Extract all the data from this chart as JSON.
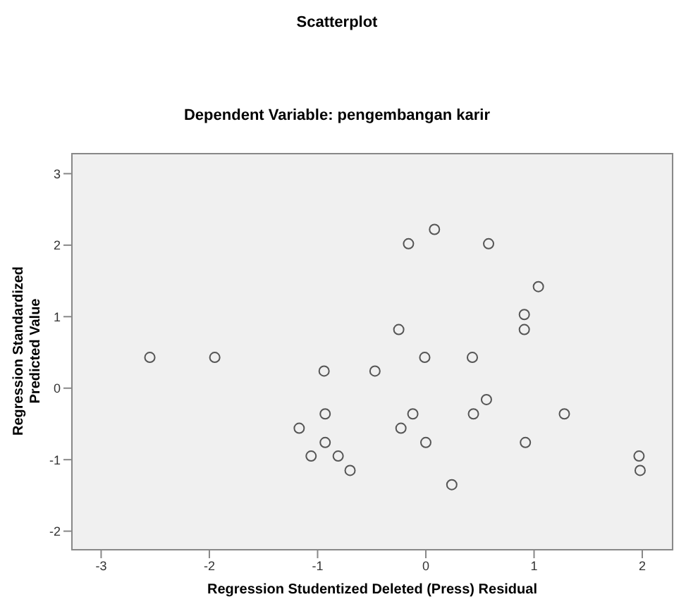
{
  "chart_data": {
    "type": "scatter",
    "title": "Scatterplot",
    "subtitle": "Dependent Variable: pengembangan karir",
    "xlabel": "Regression Studentized Deleted (Press) Residual",
    "ylabel": "Regression Standardized Predicted Value",
    "x": [
      -2.55,
      -1.95,
      -0.94,
      -0.47,
      -0.93,
      -1.17,
      -0.93,
      -1.06,
      -0.81,
      -0.7,
      -0.16,
      0.08,
      0.58,
      1.04,
      0.91,
      0.91,
      -0.25,
      -0.01,
      0.43,
      0.56,
      -0.12,
      0.44,
      1.28,
      -0.23,
      0.0,
      0.92,
      0.24,
      1.97,
      1.98
    ],
    "values": [
      0.43,
      0.43,
      0.24,
      0.24,
      -0.36,
      -0.56,
      -0.76,
      -0.95,
      -0.95,
      -1.15,
      2.02,
      2.22,
      2.02,
      1.42,
      1.03,
      0.82,
      0.82,
      0.43,
      0.43,
      -0.16,
      -0.36,
      -0.36,
      -0.36,
      -0.56,
      -0.76,
      -0.76,
      -1.35,
      -0.95,
      -1.15
    ],
    "color": "#555555",
    "marker": "circle",
    "xlim": [
      -3.27,
      2.28
    ],
    "xticks": [
      -3,
      -2,
      -1,
      0,
      1,
      2
    ],
    "ylim": [
      -2.26,
      3.28
    ],
    "yticks": [
      -2,
      -1,
      0,
      1,
      2,
      3
    ]
  }
}
